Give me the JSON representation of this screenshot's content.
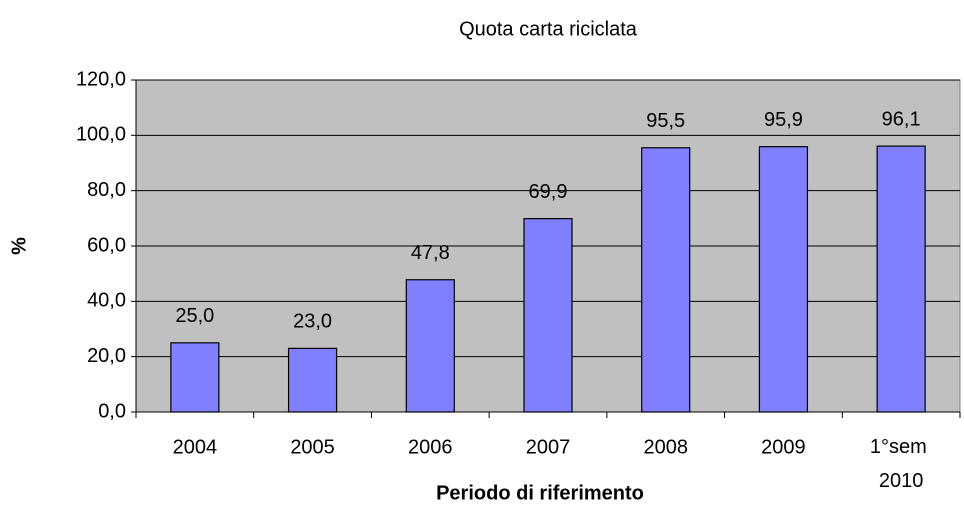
{
  "chart_data": {
    "type": "bar",
    "title": "Quota carta riciclata",
    "x_label": "Periodo di riferimento",
    "y_label": "%",
    "categories": [
      "2004",
      "2005",
      "2006",
      "2007",
      "2008",
      "2009",
      "1°sem 2010"
    ],
    "values": [
      25.0,
      23.0,
      47.8,
      69.9,
      95.5,
      95.9,
      96.1
    ],
    "value_labels": [
      "25,0",
      "23,0",
      "47,8",
      "69,9",
      "95,5",
      "95,9",
      "96,1"
    ],
    "color": "#8080ff",
    "plot_background": "#c0c0c0",
    "ylim": [
      0,
      120
    ],
    "yticks": [
      {
        "value": 0,
        "label": "0,0"
      },
      {
        "value": 20,
        "label": "20,0"
      },
      {
        "value": 40,
        "label": "40,0"
      },
      {
        "value": 60,
        "label": "60,0"
      },
      {
        "value": 80,
        "label": "80,0"
      },
      {
        "value": 100,
        "label": "100,0"
      },
      {
        "value": 120,
        "label": "120,0"
      }
    ],
    "grid": true
  }
}
